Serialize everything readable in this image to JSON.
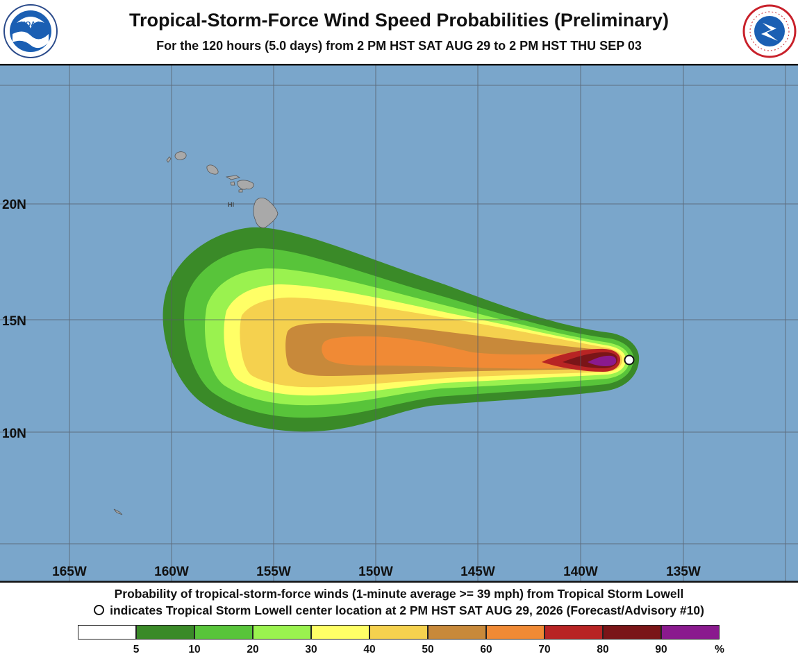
{
  "header": {
    "title": "Tropical-Storm-Force Wind Speed Probabilities (Preliminary)",
    "subtitle": "For the 120 hours (5.0 days) from 2 PM HST SAT AUG 29 to 2 PM HST THU SEP 03",
    "logo_left": "noaa-logo",
    "logo_right": "national-weather-service-logo"
  },
  "map": {
    "background_color": "#7aa6cb",
    "land_color": "#a9a9a9",
    "lon_labels": [
      "165W",
      "160W",
      "155W",
      "150W",
      "145W",
      "140W",
      "135W"
    ],
    "lat_labels": [
      "20N",
      "15N",
      "10N"
    ],
    "place_label": "HI",
    "storm_center": {
      "lon": -137.8,
      "lat": 13.2
    }
  },
  "footer": {
    "line1": "Probability of tropical-storm-force winds (1-minute average >= 39 mph) from Tropical Storm Lowell",
    "line2": "indicates Tropical Storm Lowell center location at 2 PM HST SAT AUG 29, 2026 (Forecast/Advisory #10)"
  },
  "legend": {
    "colors": [
      "#ffffff",
      "#3a8a28",
      "#58c43a",
      "#9af24f",
      "#ffff66",
      "#f5d14e",
      "#c8893a",
      "#f08a35",
      "#b82424",
      "#7a1518",
      "#8a1a8e"
    ],
    "ticks": [
      "5",
      "10",
      "20",
      "30",
      "40",
      "50",
      "60",
      "70",
      "80",
      "90",
      "%"
    ]
  }
}
